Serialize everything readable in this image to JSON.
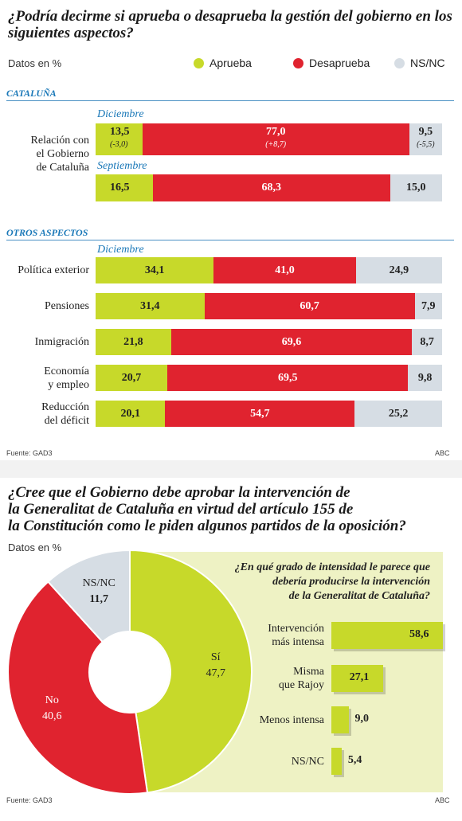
{
  "chart_data": [
    {
      "type": "bar",
      "title": "¿Podría decirme si aprueba o desaprueba la gestión del gobierno en los siguientes aspectos?",
      "units_note": "Datos en %",
      "legend": [
        "Aprueba",
        "Desaprueba",
        "NS/NC"
      ],
      "colors": {
        "aprueba": "#c7d92a",
        "desaprueba": "#e0232f",
        "nsnc": "#d6dde4"
      },
      "sections": [
        {
          "name": "CATALUÑA",
          "groups": [
            {
              "label": "Relación con el Gobierno de Cataluña",
              "label_lines": [
                "Relación con",
                "el Gobierno",
                "de Cataluña"
              ],
              "periods": [
                {
                  "period": "Diciembre",
                  "values": [
                    13.5,
                    77.0,
                    9.5
                  ],
                  "labels": [
                    "13,5",
                    "77,0",
                    "9,5"
                  ],
                  "changes": [
                    "(-3,0)",
                    "(+8,7)",
                    "(-5,5)"
                  ]
                },
                {
                  "period": "Septiembre",
                  "values": [
                    16.5,
                    68.3,
                    15.0
                  ],
                  "labels": [
                    "16,5",
                    "68,3",
                    "15,0"
                  ]
                }
              ]
            }
          ]
        },
        {
          "name": "OTROS ASPECTOS",
          "period": "Diciembre",
          "rows": [
            {
              "label_lines": [
                "Política exterior"
              ],
              "values": [
                34.1,
                41.0,
                24.9
              ],
              "labels": [
                "34,1",
                "41,0",
                "24,9"
              ]
            },
            {
              "label_lines": [
                "Pensiones"
              ],
              "values": [
                31.4,
                60.7,
                7.9
              ],
              "labels": [
                "31,4",
                "60,7",
                "7,9"
              ]
            },
            {
              "label_lines": [
                "Inmigración"
              ],
              "values": [
                21.8,
                69.6,
                8.7
              ],
              "labels": [
                "21,8",
                "69,6",
                "8,7"
              ]
            },
            {
              "label_lines": [
                "Economía",
                "y empleo"
              ],
              "values": [
                20.7,
                69.5,
                9.8
              ],
              "labels": [
                "20,7",
                "69,5",
                "9,8"
              ]
            },
            {
              "label_lines": [
                "Reducción",
                "del déficit"
              ],
              "values": [
                20.1,
                54.7,
                25.2
              ],
              "labels": [
                "20,1",
                "54,7",
                "25,2"
              ]
            }
          ]
        }
      ],
      "source": "Fuente: GAD3",
      "credit": "ABC"
    },
    {
      "type": "pie",
      "title": "¿Cree que el Gobierno debe aprobar la intervención de la Generalitat de Cataluña en virtud del artículo 155 de la Constitución como le piden algunos partidos de la oposición?",
      "title_lines": [
        "¿Cree que el Gobierno debe aprobar la intervención de",
        "la Generalitat de Cataluña en virtud del artículo 155 de",
        "la Constitución como le piden algunos partidos de la oposición?"
      ],
      "units_note": "Datos en %",
      "slices": [
        {
          "name": "Sí",
          "value": 47.7,
          "label": "47,7",
          "color": "#c7d92a"
        },
        {
          "name": "No",
          "value": 40.6,
          "label": "40,6",
          "color": "#e0232f"
        },
        {
          "name": "NS/NC",
          "value": 11.7,
          "label": "11,7",
          "color": "#d6dde4"
        }
      ],
      "source": "Fuente: GAD3",
      "credit": "ABC"
    },
    {
      "type": "bar",
      "orientation": "horizontal",
      "title_lines": [
        "¿En qué grado de intensidad le parece que",
        "debería producirse la intervención",
        "de la Generalitat de Cataluña?"
      ],
      "categories": [
        {
          "label_lines": [
            "Intervención",
            "más intensa"
          ],
          "value": 58.6,
          "label": "58,6"
        },
        {
          "label_lines": [
            "Misma",
            "que Rajoy"
          ],
          "value": 27.1,
          "label": "27,1"
        },
        {
          "label_lines": [
            "Menos intensa"
          ],
          "value": 9.0,
          "label": "9,0"
        },
        {
          "label_lines": [
            "NS/NC"
          ],
          "value": 5.4,
          "label": "5,4"
        }
      ],
      "color": "#c7d92a"
    }
  ]
}
